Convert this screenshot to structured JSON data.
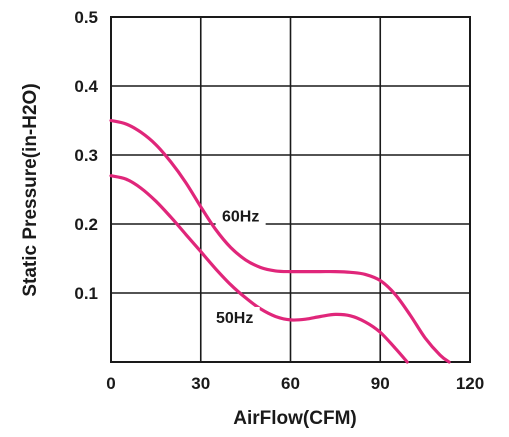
{
  "chart_data": {
    "type": "line",
    "xlabel": "AirFlow(CFM)",
    "ylabel": "Static Pressure(in-H2O)",
    "xlim": [
      0,
      120
    ],
    "ylim": [
      0,
      0.5
    ],
    "x_ticks": [
      "0",
      "30",
      "60",
      "90",
      "120"
    ],
    "y_ticks": [
      "0.1",
      "0.2",
      "0.3",
      "0.4",
      "0.5"
    ],
    "grid": true,
    "line_color": "#e0267a",
    "series": [
      {
        "name": "60Hz",
        "x": [
          0,
          5,
          10,
          15,
          20,
          25,
          30,
          35,
          40,
          45,
          50,
          55,
          60,
          65,
          70,
          75,
          80,
          85,
          90,
          95,
          100,
          105,
          110,
          113
        ],
        "y": [
          0.35,
          0.345,
          0.333,
          0.315,
          0.29,
          0.26,
          0.225,
          0.192,
          0.166,
          0.148,
          0.137,
          0.132,
          0.131,
          0.131,
          0.131,
          0.131,
          0.13,
          0.127,
          0.118,
          0.098,
          0.068,
          0.035,
          0.01,
          0.0
        ]
      },
      {
        "name": "50Hz",
        "x": [
          0,
          5,
          10,
          15,
          20,
          25,
          30,
          35,
          40,
          45,
          50,
          55,
          60,
          65,
          70,
          75,
          80,
          85,
          90,
          95,
          99
        ],
        "y": [
          0.27,
          0.265,
          0.252,
          0.233,
          0.21,
          0.185,
          0.16,
          0.135,
          0.112,
          0.093,
          0.077,
          0.066,
          0.061,
          0.062,
          0.066,
          0.069,
          0.067,
          0.058,
          0.043,
          0.02,
          0.0
        ]
      }
    ]
  }
}
